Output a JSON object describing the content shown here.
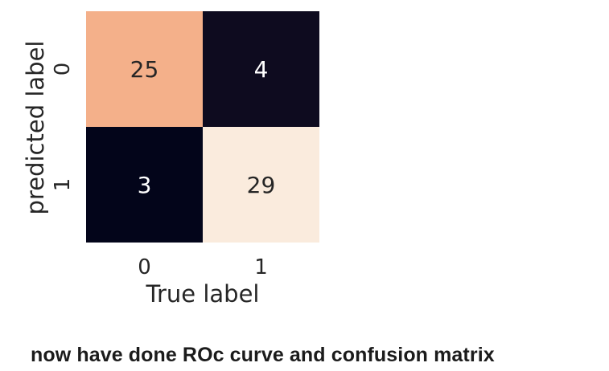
{
  "chart_data": {
    "type": "heatmap",
    "x_categories": [
      "0",
      "1"
    ],
    "y_categories": [
      "0",
      "1"
    ],
    "values": [
      [
        25,
        4
      ],
      [
        3,
        29
      ]
    ],
    "xlabel": "True label",
    "ylabel": "predicted label",
    "colorbar": false,
    "grid": false,
    "colormap": "rocket",
    "cell_colors": [
      [
        "#f4b08a",
        "#0e0b1f"
      ],
      [
        "#03051a",
        "#faebdd"
      ]
    ],
    "text_colors": [
      [
        "#262626",
        "#ffffff"
      ],
      [
        "#ffffff",
        "#262626"
      ]
    ]
  },
  "caption": "now have done ROc curve and confusion matrix"
}
